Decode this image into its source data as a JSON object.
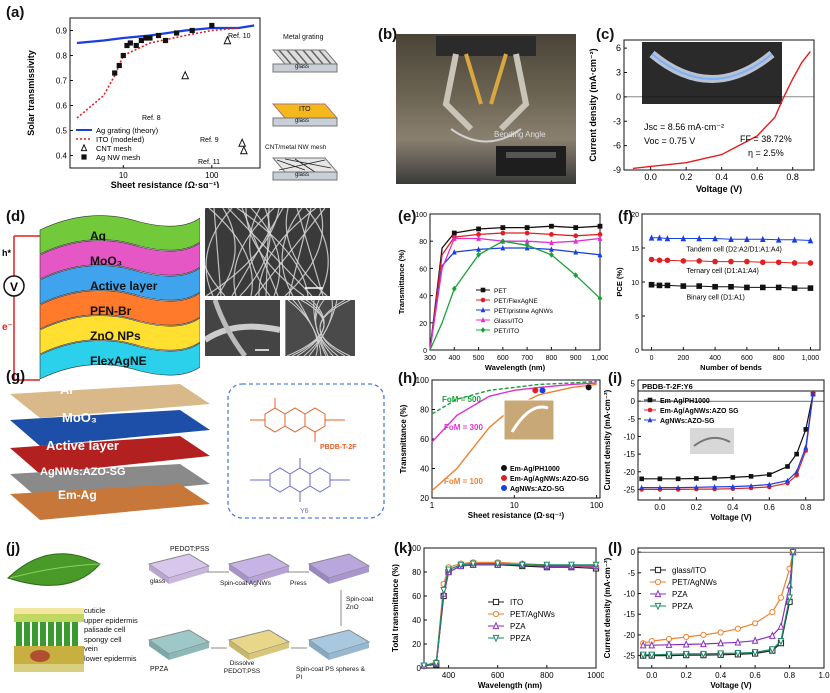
{
  "figure": {
    "panels": [
      "(a)",
      "(b)",
      "(c)",
      "(d)",
      "(e)",
      "(f)",
      "(g)",
      "(h)",
      "(i)",
      "(j)",
      "(k)",
      "(l)"
    ]
  },
  "colors": {
    "blue": "#1a3fe0",
    "red": "#e02020",
    "black": "#111111",
    "green": "#1aa03a",
    "magenta": "#e030d0",
    "orange": "#f08030"
  },
  "a": {
    "ylabel": "Solar transmissivity",
    "xlabel": "Sheet resistance (Ω·sq⁻¹)",
    "yticks": [
      "0.9",
      "0.8",
      "0.7",
      "0.6",
      "0.5",
      "0.4"
    ],
    "xticks": [
      "10",
      "100"
    ],
    "legend": [
      "Ag grating (theory)",
      "ITO (modeled)",
      "CNT mesh",
      "Ag NW mesh"
    ],
    "refs": [
      "Ref. 10",
      "Ref. 8",
      "Ref. 9",
      "Ref. 11"
    ],
    "schem": [
      "Metal grating",
      "glass",
      "ITO",
      "glass",
      "CNT/metal NW mesh",
      "glass"
    ],
    "chart_data": {
      "type": "line",
      "xlabel": "Sheet resistance (Ω·sq⁻¹)",
      "ylabel": "Solar transmissivity",
      "ylim": [
        0.35,
        0.95
      ],
      "series": [
        {
          "name": "Ag grating (theory)",
          "x": [
            3,
            6,
            10,
            20,
            50,
            100,
            200,
            300
          ],
          "y": [
            0.85,
            0.86,
            0.87,
            0.88,
            0.9,
            0.91,
            0.91,
            0.92
          ]
        },
        {
          "name": "ITO (modeled)",
          "x": [
            3,
            6,
            8,
            10,
            20,
            50,
            100,
            200
          ],
          "y": [
            0.55,
            0.64,
            0.72,
            0.8,
            0.85,
            0.88,
            0.9,
            0.91
          ]
        },
        {
          "name": "CNT mesh",
          "x": [
            50,
            150,
            220,
            230
          ],
          "y": [
            0.72,
            0.86,
            0.45,
            0.42
          ]
        },
        {
          "name": "Ag NW mesh",
          "x": [
            8,
            9,
            10,
            11,
            12,
            14,
            16,
            18,
            20,
            25,
            30,
            40,
            60,
            100
          ],
          "y": [
            0.73,
            0.76,
            0.8,
            0.84,
            0.85,
            0.84,
            0.86,
            0.87,
            0.87,
            0.88,
            0.86,
            0.89,
            0.9,
            0.92
          ]
        }
      ]
    }
  },
  "b": {
    "caption": "Bending Angle"
  },
  "c": {
    "ylabel": "Current density (mA·cm⁻²)",
    "xlabel": "Voltage (V)",
    "yticks": [
      "6",
      "3",
      "0",
      "-3",
      "-6",
      "-9"
    ],
    "xticks": [
      "0.0",
      "0.2",
      "0.4",
      "0.6",
      "0.8"
    ],
    "jsc": "Jsc = 8.56 mA·cm⁻²",
    "voc": "Voc = 0.75 V",
    "ff": "FF = 38.72%",
    "eta": "η = 2.5%",
    "chart_data": {
      "type": "line",
      "xlabel": "Voltage (V)",
      "ylabel": "Current density (mA·cm⁻²)",
      "ylim": [
        -9,
        7
      ],
      "series": [
        {
          "x": [
            -0.1,
            0.0,
            0.2,
            0.4,
            0.6,
            0.7,
            0.75,
            0.8,
            0.85,
            0.9
          ],
          "y": [
            -8.8,
            -8.56,
            -8.1,
            -7.1,
            -4.8,
            -2.5,
            0,
            2.2,
            4.2,
            5.6
          ]
        }
      ]
    }
  },
  "d": {
    "layers": [
      "Ag",
      "MoO₃",
      "Active layer",
      "PFN-Br",
      "ZnO NPs",
      "FlexAgNE"
    ],
    "hv": "h*",
    "v": "V",
    "e": "e⁻"
  },
  "e": {
    "ylabel": "Transmittance (%)",
    "xlabel": "Wavelength (nm)",
    "yticks": [
      "100",
      "80",
      "60",
      "40",
      "20",
      "0"
    ],
    "xticks": [
      "300",
      "400",
      "500",
      "600",
      "700",
      "800",
      "900",
      "1,000"
    ],
    "legend": [
      "PET",
      "PET/FlexAgNE",
      "PET/pristine AgNWs",
      "Glass/ITO",
      "PET/ITO"
    ],
    "chart_data": {
      "type": "line",
      "xlabel": "Wavelength (nm)",
      "ylabel": "Transmittance (%)",
      "ylim": [
        0,
        100
      ],
      "series": [
        {
          "name": "PET",
          "x": [
            300,
            350,
            400,
            500,
            600,
            700,
            800,
            900,
            1000
          ],
          "y": [
            0,
            75,
            86,
            89,
            90,
            90,
            91,
            90,
            91
          ]
        },
        {
          "name": "PET/FlexAgNE",
          "x": [
            300,
            350,
            400,
            500,
            600,
            700,
            800,
            900,
            1000
          ],
          "y": [
            0,
            70,
            83,
            85,
            86,
            86,
            85,
            84,
            85
          ]
        },
        {
          "name": "PET/pristine AgNWs",
          "x": [
            300,
            350,
            400,
            500,
            600,
            700,
            800,
            900,
            1000
          ],
          "y": [
            0,
            62,
            72,
            74,
            75,
            75,
            74,
            72,
            70
          ]
        },
        {
          "name": "Glass/ITO",
          "x": [
            300,
            350,
            400,
            500,
            600,
            700,
            800,
            900,
            1000
          ],
          "y": [
            0,
            60,
            82,
            82,
            80,
            80,
            79,
            80,
            82
          ]
        },
        {
          "name": "PET/ITO",
          "x": [
            300,
            350,
            400,
            500,
            600,
            700,
            800,
            900,
            1000
          ],
          "y": [
            0,
            20,
            45,
            70,
            80,
            77,
            70,
            55,
            38
          ]
        }
      ]
    }
  },
  "f": {
    "ylabel": "PCE (%)",
    "xlabel": "Number of bends",
    "yticks": [
      "20",
      "15",
      "10",
      "5",
      "0"
    ],
    "xticks": [
      "0",
      "200",
      "400",
      "600",
      "800",
      "1,000"
    ],
    "series": [
      "Tandem cell (D2:A2/D1:A1:A4)",
      "Ternary cell (D1:A1:A4)",
      "Binary cell (D1:A1)"
    ],
    "chart_data": {
      "type": "scatter",
      "xlabel": "Number of bends",
      "ylabel": "PCE (%)",
      "ylim": [
        0,
        20
      ],
      "series": [
        {
          "name": "Tandem cell (D2:A2/D1:A1:A4)",
          "x": [
            0,
            50,
            100,
            200,
            300,
            400,
            500,
            600,
            700,
            800,
            900,
            1000
          ],
          "y": [
            16.5,
            16.5,
            16.4,
            16.4,
            16.4,
            16.4,
            16.3,
            16.3,
            16.3,
            16.2,
            16.2,
            16.1
          ]
        },
        {
          "name": "Ternary cell (D1:A1:A4)",
          "x": [
            0,
            50,
            100,
            200,
            300,
            400,
            500,
            600,
            700,
            800,
            900,
            1000
          ],
          "y": [
            13.3,
            13.2,
            13.2,
            13.1,
            13.1,
            13,
            13,
            13,
            12.9,
            12.9,
            12.8,
            12.8
          ]
        },
        {
          "name": "Binary cell (D1:A1)",
          "x": [
            0,
            50,
            100,
            200,
            300,
            400,
            500,
            600,
            700,
            800,
            900,
            1000
          ],
          "y": [
            9.6,
            9.5,
            9.5,
            9.4,
            9.4,
            9.3,
            9.3,
            9.2,
            9.2,
            9.2,
            9.1,
            9.1
          ]
        }
      ]
    }
  },
  "g": {
    "layers": [
      "Al",
      "MoO₃",
      "Active layer",
      "AgNWs:AZO-SG",
      "Em-Ag"
    ],
    "mol1": "PBDB-T-2F",
    "mol2": "Y6"
  },
  "h": {
    "ylabel": "Transmittance (%)",
    "xlabel": "Sheet resistance (Ω·sq⁻¹)",
    "yticks": [
      "100",
      "80",
      "60",
      "40",
      "20"
    ],
    "xticks": [
      "1",
      "10",
      "100"
    ],
    "fom": [
      "FoM = 500",
      "FoM = 300",
      "FoM = 100"
    ],
    "legend": [
      "Em-Ag/PH1000",
      "Em-Ag/AgNWs:AZO-SG",
      "AgNWs:AZO-SG"
    ],
    "chart_data": {
      "type": "line",
      "xlabel": "Sheet resistance (Ω·sq⁻¹)",
      "ylabel": "Transmittance (%)",
      "ylim": [
        20,
        100
      ],
      "series": [
        {
          "name": "FoM = 500",
          "x": [
            1,
            2,
            5,
            10,
            20,
            50,
            100
          ],
          "y": [
            77,
            87,
            93,
            95,
            97,
            98,
            99
          ]
        },
        {
          "name": "FoM = 300",
          "x": [
            1,
            2,
            5,
            10,
            20,
            50,
            100
          ],
          "y": [
            58,
            76,
            89,
            93,
            95,
            97,
            98
          ]
        },
        {
          "name": "FoM = 100",
          "x": [
            1,
            2,
            5,
            10,
            20,
            50,
            100
          ],
          "y": [
            25,
            40,
            68,
            82,
            90,
            95,
            97
          ]
        },
        {
          "name": "Em-Ag/PH1000",
          "x": [
            80
          ],
          "y": [
            95
          ]
        },
        {
          "name": "Em-Ag/AgNWs:AZO-SG",
          "x": [
            18
          ],
          "y": [
            93
          ]
        },
        {
          "name": "AgNWs:AZO-SG",
          "x": [
            22
          ],
          "y": [
            93
          ]
        }
      ]
    }
  },
  "i": {
    "ylabel": "Current density (mA·cm⁻²)",
    "xlabel": "Voltage (V)",
    "yticks": [
      "5",
      "0",
      "-5",
      "-10",
      "-15",
      "-20",
      "-25"
    ],
    "xticks": [
      "0.0",
      "0.2",
      "0.4",
      "0.6",
      "0.8"
    ],
    "title": "PBDB-T-2F:Y6",
    "legend": [
      "Em-Ag/PH1000",
      "Em-Ag/AgNWs:AZO SG",
      "AgNWs:AZO-SG"
    ],
    "chart_data": {
      "type": "line",
      "xlabel": "Voltage (V)",
      "ylabel": "Current density (mA·cm⁻²)",
      "ylim": [
        -28,
        6
      ],
      "series": [
        {
          "name": "Em-Ag/PH1000",
          "x": [
            -0.1,
            0,
            0.1,
            0.2,
            0.3,
            0.4,
            0.5,
            0.6,
            0.7,
            0.75,
            0.8,
            0.84
          ],
          "y": [
            -22,
            -22,
            -22,
            -21.9,
            -21.8,
            -21.6,
            -21.3,
            -20.8,
            -18.5,
            -15,
            -8,
            2
          ]
        },
        {
          "name": "Em-Ag/AgNWs:AZO SG",
          "x": [
            -0.1,
            0,
            0.1,
            0.2,
            0.3,
            0.4,
            0.5,
            0.6,
            0.7,
            0.75,
            0.8,
            0.84
          ],
          "y": [
            -25,
            -25,
            -25,
            -24.9,
            -24.9,
            -24.8,
            -24.6,
            -24.3,
            -23.2,
            -21,
            -14,
            2
          ]
        },
        {
          "name": "AgNWs:AZO-SG",
          "x": [
            -0.1,
            0,
            0.1,
            0.2,
            0.3,
            0.4,
            0.5,
            0.6,
            0.7,
            0.75,
            0.8,
            0.84
          ],
          "y": [
            -24.5,
            -24.5,
            -24.5,
            -24.4,
            -24.3,
            -24.2,
            -24,
            -23.6,
            -22.5,
            -20,
            -13,
            2
          ]
        }
      ]
    }
  },
  "j": {
    "leaf": [
      "cuticle",
      "upper epidermis",
      "palisade cell",
      "spongy cell",
      "vein",
      "lower epidermis"
    ],
    "steps": [
      "PEDOT:PSS",
      "glass",
      "Spin-coat AgNWs",
      "Press",
      "Spin-coat ZnO",
      "Spin-coat PS spheres & PI",
      "Dissolve PEDOT:PSS",
      "PPZA"
    ]
  },
  "k": {
    "ylabel": "Total transmittance (%)",
    "xlabel": "Wavelength (nm)",
    "yticks": [
      "100",
      "80",
      "60",
      "40",
      "20",
      "0"
    ],
    "xticks": [
      "400",
      "600",
      "800",
      "1000"
    ],
    "legend": [
      "ITO",
      "PET/AgNWs",
      "PZA",
      "PPZA"
    ],
    "chart_data": {
      "type": "line",
      "xlabel": "Wavelength (nm)",
      "ylabel": "Total transmittance (%)",
      "ylim": [
        0,
        100
      ],
      "series": [
        {
          "name": "ITO",
          "x": [
            300,
            350,
            380,
            400,
            450,
            500,
            600,
            700,
            800,
            900,
            1000
          ],
          "y": [
            2,
            3,
            60,
            80,
            85,
            86,
            86,
            85,
            84,
            84,
            83
          ]
        },
        {
          "name": "PET/AgNWs",
          "x": [
            300,
            350,
            380,
            400,
            450,
            500,
            600,
            700,
            800,
            900,
            1000
          ],
          "y": [
            2,
            5,
            70,
            84,
            87,
            88,
            88,
            87,
            86,
            85,
            84
          ]
        },
        {
          "name": "PZA",
          "x": [
            300,
            350,
            380,
            400,
            450,
            500,
            600,
            700,
            800,
            900,
            1000
          ],
          "y": [
            2,
            4,
            62,
            80,
            85,
            86,
            86,
            86,
            85,
            85,
            85
          ]
        },
        {
          "name": "PPZA",
          "x": [
            300,
            350,
            380,
            400,
            450,
            500,
            600,
            700,
            800,
            900,
            1000
          ],
          "y": [
            2,
            4,
            65,
            82,
            86,
            87,
            87,
            86,
            86,
            86,
            86
          ]
        }
      ]
    }
  },
  "l": {
    "ylabel": "Current density (mA·cm⁻²)",
    "xlabel": "Voltage (V)",
    "yticks": [
      "0",
      "-5",
      "-10",
      "-15",
      "-20",
      "-25"
    ],
    "xticks": [
      "0.0",
      "0.2",
      "0.4",
      "0.6",
      "0.8",
      "1.0"
    ],
    "legend": [
      "glass/ITO",
      "PET/AgNWs",
      "PZA",
      "PPZA"
    ],
    "chart_data": {
      "type": "line",
      "xlabel": "Voltage (V)",
      "ylabel": "Current density (mA·cm⁻²)",
      "ylim": [
        -28,
        1
      ],
      "series": [
        {
          "name": "glass/ITO",
          "x": [
            -0.05,
            0,
            0.1,
            0.2,
            0.3,
            0.4,
            0.5,
            0.6,
            0.7,
            0.75,
            0.8,
            0.82
          ],
          "y": [
            -25,
            -25,
            -25,
            -24.9,
            -24.9,
            -24.8,
            -24.7,
            -24.5,
            -23.8,
            -22,
            -12,
            0
          ]
        },
        {
          "name": "PET/AgNWs",
          "x": [
            -0.05,
            0,
            0.1,
            0.2,
            0.3,
            0.4,
            0.5,
            0.6,
            0.7,
            0.75,
            0.8,
            0.82
          ],
          "y": [
            -22,
            -21.5,
            -21,
            -20.5,
            -20,
            -19.4,
            -18.5,
            -17.2,
            -14.5,
            -11,
            -4,
            0
          ]
        },
        {
          "name": "PZA",
          "x": [
            -0.05,
            0,
            0.1,
            0.2,
            0.3,
            0.4,
            0.5,
            0.6,
            0.7,
            0.75,
            0.8,
            0.82
          ],
          "y": [
            -22.5,
            -22.5,
            -22.4,
            -22.3,
            -22.2,
            -22,
            -21.8,
            -21.4,
            -20.2,
            -18,
            -8,
            0
          ]
        },
        {
          "name": "PPZA",
          "x": [
            -0.05,
            0,
            0.1,
            0.2,
            0.3,
            0.4,
            0.5,
            0.6,
            0.7,
            0.75,
            0.8,
            0.82
          ],
          "y": [
            -24.8,
            -24.8,
            -24.7,
            -24.6,
            -24.6,
            -24.5,
            -24.4,
            -24.2,
            -23.5,
            -21.5,
            -11,
            0
          ]
        }
      ]
    }
  }
}
